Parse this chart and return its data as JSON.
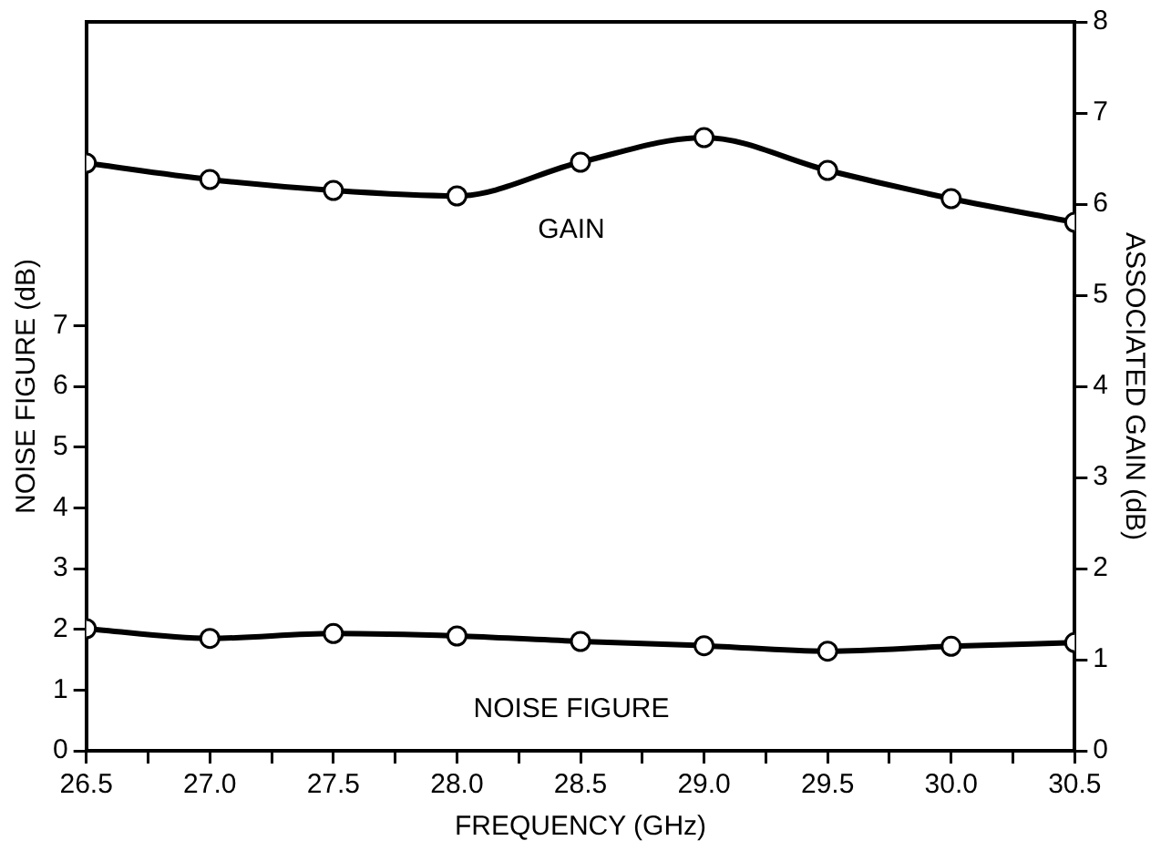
{
  "chart_data": {
    "type": "line",
    "xlabel": "FREQUENCY (GHz)",
    "ylabel": "NOISE FIGURE (dB)",
    "y2label": "ASSOCIATED GAIN (dB)",
    "x": [
      26.5,
      27.0,
      27.5,
      28.0,
      28.5,
      29.0,
      29.5,
      30.0,
      30.5
    ],
    "series": [
      {
        "name": "GAIN",
        "color": "#000000",
        "axis": "y2",
        "values": [
          6.45,
          6.27,
          6.15,
          6.09,
          6.46,
          6.73,
          6.37,
          6.06,
          5.8
        ]
      },
      {
        "name": "NOISE FIGURE",
        "color": "#000000",
        "values": [
          2.01,
          1.85,
          1.93,
          1.89,
          1.8,
          1.73,
          1.64,
          1.72,
          1.78
        ]
      }
    ],
    "xlim": [
      26.5,
      30.5
    ],
    "xticks": [
      {
        "value": 26.5,
        "label": "26.5"
      },
      {
        "value": 26.75,
        "label": null
      },
      {
        "value": 27.0,
        "label": "27.0"
      },
      {
        "value": 27.25,
        "label": null
      },
      {
        "value": 27.5,
        "label": "27.5"
      },
      {
        "value": 27.75,
        "label": null
      },
      {
        "value": 28.0,
        "label": "28.0"
      },
      {
        "value": 28.25,
        "label": null
      },
      {
        "value": 28.5,
        "label": "28.5"
      },
      {
        "value": 28.75,
        "label": null
      },
      {
        "value": 29.0,
        "label": "29.0"
      },
      {
        "value": 29.25,
        "label": null
      },
      {
        "value": 29.5,
        "label": "29.5"
      },
      {
        "value": 29.75,
        "label": null
      },
      {
        "value": 30.0,
        "label": "30.0"
      },
      {
        "value": 30.25,
        "label": null
      },
      {
        "value": 30.5,
        "label": "30.5"
      }
    ],
    "ylim": [
      0,
      12
    ],
    "yticks": [
      0,
      1,
      2,
      3,
      4,
      5,
      6,
      7
    ],
    "y2lim": [
      0,
      8
    ],
    "y2ticks": [
      0,
      1,
      2,
      3,
      4,
      5,
      6,
      7,
      8
    ],
    "grid": false,
    "legend": false,
    "marker": "circle",
    "line_style": "solid"
  }
}
